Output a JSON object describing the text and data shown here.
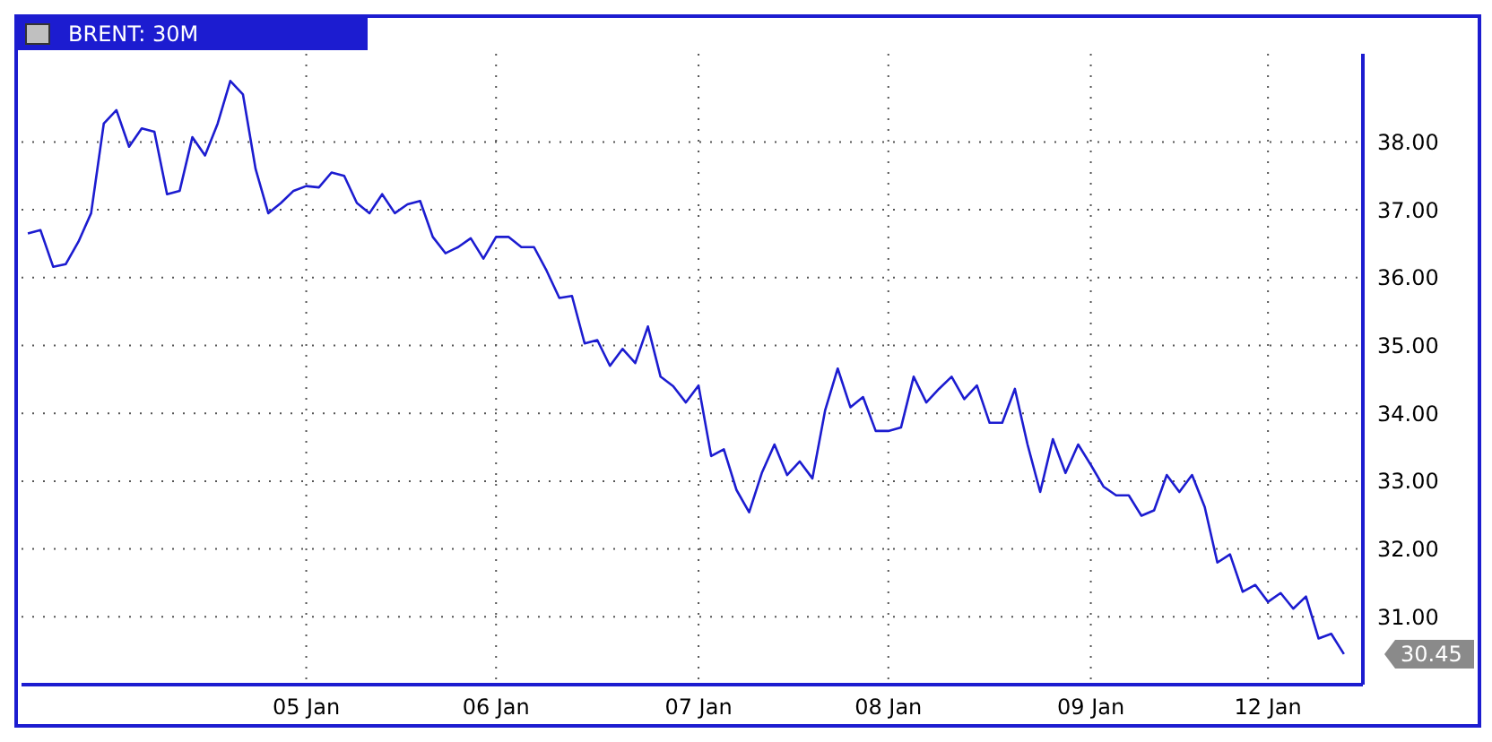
{
  "chart_data": {
    "type": "line",
    "title": "BRENT: 30M",
    "categories": [
      null,
      null,
      null,
      null,
      null,
      null,
      null,
      null,
      null,
      null,
      null,
      null,
      null,
      null,
      null,
      null,
      null,
      null,
      null,
      null,
      null,
      null,
      "05 Jan",
      null,
      null,
      null,
      null,
      null,
      null,
      null,
      null,
      null,
      null,
      null,
      null,
      null,
      null,
      "06 Jan",
      null,
      null,
      null,
      null,
      null,
      null,
      null,
      null,
      null,
      null,
      null,
      null,
      null,
      null,
      null,
      "07 Jan",
      null,
      null,
      null,
      null,
      null,
      null,
      null,
      null,
      null,
      null,
      null,
      null,
      null,
      null,
      "08 Jan",
      null,
      null,
      null,
      null,
      null,
      null,
      null,
      null,
      null,
      null,
      null,
      null,
      null,
      null,
      null,
      "09 Jan",
      null,
      null,
      null,
      null,
      null,
      null,
      null,
      null,
      null,
      null,
      null,
      null,
      null,
      "12 Jan",
      null,
      null,
      null,
      null,
      null,
      null
    ],
    "ylim": [
      30,
      39.3
    ],
    "yticks": [
      {
        "value": 31,
        "label": "31.00"
      },
      {
        "value": 32,
        "label": "32.00"
      },
      {
        "value": 33,
        "label": "33.00"
      },
      {
        "value": 34,
        "label": "34.00"
      },
      {
        "value": 35,
        "label": "35.00"
      },
      {
        "value": 36,
        "label": "36.00"
      },
      {
        "value": 37,
        "label": "37.00"
      },
      {
        "value": 38,
        "label": "38.00"
      }
    ],
    "grid": true,
    "marker": "none",
    "line_style": "solid",
    "annotations": [
      "30.45"
    ],
    "series": [
      {
        "color": "#1c1cd0",
        "values": [
          36.65,
          36.7,
          36.16,
          36.2,
          36.53,
          36.95,
          38.27,
          38.47,
          37.93,
          38.2,
          38.15,
          37.23,
          37.28,
          38.07,
          37.8,
          38.27,
          38.9,
          38.7,
          37.6,
          36.95,
          37.1,
          37.28,
          37.35,
          37.33,
          37.55,
          37.5,
          37.1,
          36.95,
          37.23,
          36.95,
          37.08,
          37.13,
          36.6,
          36.36,
          36.45,
          36.58,
          36.28,
          36.6,
          36.6,
          36.45,
          36.45,
          36.1,
          35.7,
          35.73,
          35.03,
          35.08,
          34.7,
          34.95,
          34.74,
          35.28,
          34.54,
          34.4,
          34.16,
          34.41,
          33.37,
          33.47,
          32.87,
          32.54,
          33.12,
          33.54,
          33.09,
          33.29,
          33.04,
          34.04,
          34.66,
          34.09,
          34.24,
          33.74,
          33.74,
          33.79,
          34.54,
          34.16,
          34.36,
          34.54,
          34.21,
          34.41,
          33.86,
          33.86,
          34.36,
          33.54,
          32.84,
          33.62,
          33.12,
          33.54,
          33.24,
          32.92,
          32.79,
          32.79,
          32.49,
          32.57,
          33.09,
          32.84,
          33.09,
          32.62,
          31.8,
          31.92,
          31.37,
          31.47,
          31.22,
          31.35,
          31.12,
          31.3,
          30.68,
          30.75,
          30.45
        ]
      }
    ]
  }
}
